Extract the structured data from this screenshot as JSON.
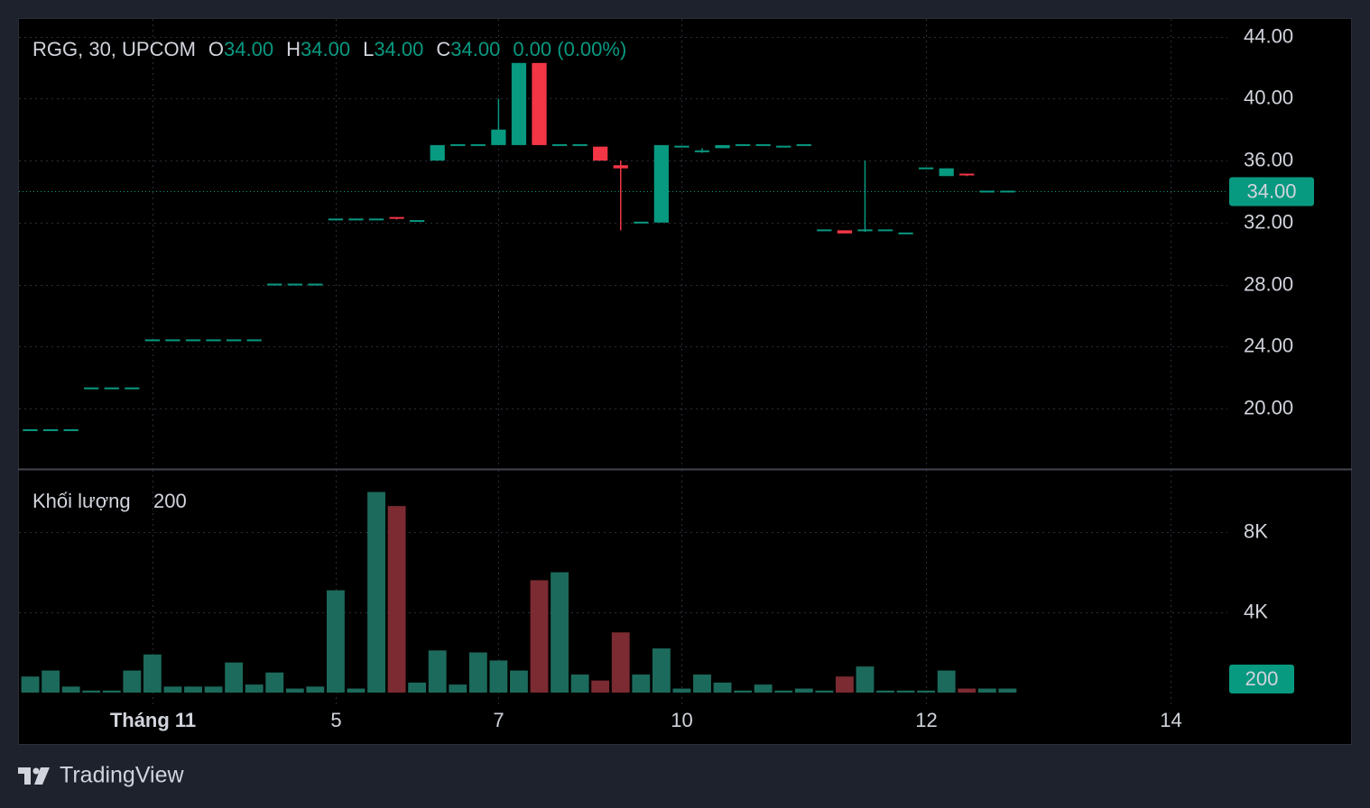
{
  "chart_data": [
    {
      "type": "candlestick",
      "title": "RGG, 30, UPCOM",
      "ohlc_labels": [
        {
          "key": "O",
          "value": "34.00"
        },
        {
          "key": "H",
          "value": "34.00"
        },
        {
          "key": "L",
          "value": "34.00"
        },
        {
          "key": "C",
          "value": "34.00"
        }
      ],
      "change": "0.00 (0.00%)",
      "last_label": "34.00",
      "up_color": "#089981",
      "down_color": "#f23645",
      "open": [
        18.6,
        18.6,
        18.6,
        21.3,
        21.3,
        21.3,
        24.4,
        24.4,
        24.4,
        24.4,
        24.4,
        24.4,
        28,
        28,
        28,
        32.2,
        32.2,
        32.2,
        32.3,
        32.1,
        36,
        37,
        37,
        37,
        37,
        42.3,
        37,
        37,
        36.9,
        35.7,
        32,
        32,
        36.9,
        36.5,
        36.8,
        37,
        37,
        36.9,
        37,
        31.5,
        31.5,
        31.4,
        31.5,
        31.3,
        35.5,
        35,
        35.1,
        34,
        34
      ],
      "high": [
        18.6,
        18.6,
        18.6,
        21.3,
        21.3,
        21.3,
        24.4,
        24.4,
        24.4,
        24.4,
        24.4,
        24.4,
        28,
        28,
        28,
        32.2,
        32.2,
        32.2,
        32.3,
        32.1,
        37,
        37,
        37,
        40,
        42.3,
        42.3,
        37,
        37,
        36.9,
        36,
        32,
        37,
        36.9,
        36.8,
        37,
        37,
        37,
        36.9,
        37,
        31.5,
        31.5,
        36,
        31.5,
        31.3,
        35.5,
        35.5,
        35.1,
        34,
        34
      ],
      "low": [
        18.6,
        18.6,
        18.6,
        21.3,
        21.3,
        21.3,
        24.4,
        24.4,
        24.4,
        24.4,
        24.4,
        24.4,
        28,
        28,
        28,
        32.2,
        32.2,
        32.2,
        32.2,
        32.1,
        36,
        37,
        37,
        37,
        37,
        37,
        37,
        37,
        36,
        31.5,
        32,
        32,
        36.9,
        36.5,
        36.8,
        37,
        37,
        36.9,
        37,
        31.5,
        31.3,
        31.4,
        31.5,
        31.3,
        35.5,
        35,
        35,
        34,
        34
      ],
      "close": [
        18.6,
        18.6,
        18.6,
        21.3,
        21.3,
        21.3,
        24.4,
        24.4,
        24.4,
        24.4,
        24.4,
        24.4,
        28,
        28,
        28,
        32.2,
        32.2,
        32.2,
        32.2,
        32.1,
        37,
        37,
        37,
        38,
        42.3,
        37,
        37,
        37,
        36,
        35.5,
        32,
        37,
        36.9,
        36.6,
        37,
        37,
        37,
        36.9,
        37,
        31.5,
        31.3,
        31.5,
        31.5,
        31.3,
        35.5,
        35.5,
        35,
        34,
        34
      ],
      "xlim": [
        -0.6,
        58.8
      ],
      "ylim": [
        16.1,
        45.2
      ],
      "yticks": [
        {
          "value": 20,
          "label": "20.00"
        },
        {
          "value": 24,
          "label": "24.00"
        },
        {
          "value": 28,
          "label": "28.00"
        },
        {
          "value": 32,
          "label": "32.00"
        },
        {
          "value": 36,
          "label": "36.00"
        },
        {
          "value": 40,
          "label": "40.00"
        },
        {
          "value": 44,
          "label": "44.00"
        }
      ],
      "grid": true
    },
    {
      "type": "bar",
      "title": "Khối lượng",
      "last_label": "200",
      "up_color": "#1c6a5b",
      "down_color": "#7b2b31",
      "values": [
        800,
        1100,
        300,
        100,
        100,
        1100,
        1900,
        300,
        300,
        300,
        1500,
        400,
        1000,
        200,
        300,
        5100,
        200,
        10000,
        9300,
        500,
        2100,
        400,
        2000,
        1600,
        1100,
        5600,
        6000,
        900,
        600,
        3000,
        900,
        2200,
        200,
        900,
        500,
        100,
        400,
        100,
        200,
        100,
        800,
        1300,
        100,
        100,
        100,
        1100,
        200,
        200,
        200
      ],
      "xlim": [
        -0.6,
        58.8
      ],
      "ylim": [
        0,
        11150
      ],
      "yticks": [
        {
          "value": 4000,
          "label": "4K"
        },
        {
          "value": 8000,
          "label": "8K"
        }
      ],
      "xticks": [
        {
          "value": 6,
          "label": "Tháng 11"
        },
        {
          "value": 15,
          "label": "5"
        },
        {
          "value": 23,
          "label": "7"
        },
        {
          "value": 32,
          "label": "10"
        },
        {
          "value": 44,
          "label": "12"
        },
        {
          "value": 56,
          "label": "14"
        }
      ],
      "grid": true
    }
  ],
  "footer": {
    "brand": "TradingView"
  }
}
